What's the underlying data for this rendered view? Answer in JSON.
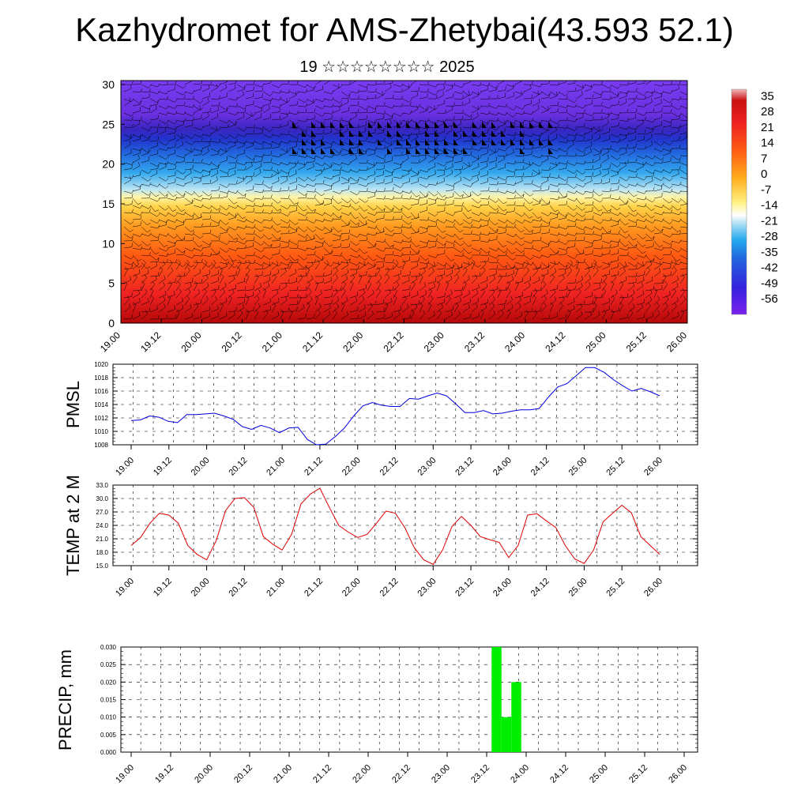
{
  "header": {
    "title": "Kazhydromet for AMS-Zhetybai(43.593 52.1)",
    "subtitle": "19 ☆☆☆☆☆☆☆☆ 2025"
  },
  "colors": {
    "pmsl_line": "#0000dd",
    "temp_line": "#dd0000",
    "precip_bar": "#00ee00",
    "frame": "#000000"
  },
  "chart_data": [
    {
      "type": "heatmap",
      "name": "vertical-cross-section",
      "x_ticks": [
        "19.00",
        "19.12",
        "20.00",
        "20.12",
        "21.00",
        "21.12",
        "22.00",
        "22.12",
        "23.00",
        "23.12",
        "24.00",
        "24.12",
        "25.00",
        "25.12",
        "26.00"
      ],
      "y_ticks": [
        0,
        5,
        10,
        15,
        20,
        25,
        30
      ],
      "ylim": [
        0,
        30.5
      ],
      "colorbar_labels": [
        "35",
        "28",
        "21",
        "14",
        "7",
        "0",
        "-7",
        "-14",
        "-21",
        "-28",
        "-35",
        "-42",
        "-49",
        "-56"
      ],
      "colorbar_range": [
        -63,
        38
      ],
      "overlay": "wind barbs"
    },
    {
      "type": "line",
      "name": "pmsl",
      "ylabel": "PMSL",
      "x_ticks": [
        "19.00",
        "19.12",
        "20.00",
        "20.12",
        "21.00",
        "21.12",
        "22.00",
        "22.12",
        "23.00",
        "23.12",
        "24.00",
        "24.12",
        "25.00",
        "25.12",
        "26.00"
      ],
      "y_ticks": [
        "1008",
        "1010",
        "1012",
        "1014",
        "1016",
        "1018",
        "1020"
      ],
      "ylim": [
        1008,
        1020
      ],
      "values": [
        1011.6,
        1011.7,
        1012.3,
        1012.1,
        1011.5,
        1011.3,
        1012.5,
        1012.5,
        1012.6,
        1012.7,
        1012.3,
        1011.8,
        1010.7,
        1010.3,
        1010.9,
        1010.5,
        1009.8,
        1010.5,
        1010.6,
        1008.8,
        1008.0,
        1008.1,
        1009.2,
        1010.5,
        1012.3,
        1013.8,
        1014.3,
        1013.9,
        1013.7,
        1013.7,
        1014.9,
        1014.8,
        1015.3,
        1015.7,
        1015.3,
        1014.1,
        1012.8,
        1012.8,
        1013.1,
        1012.6,
        1012.7,
        1013.0,
        1013.2,
        1013.2,
        1013.4,
        1015.1,
        1016.6,
        1017.1,
        1018.3,
        1019.5,
        1019.5,
        1018.8,
        1017.7,
        1016.8,
        1016.0,
        1016.4,
        1015.9,
        1015.3
      ]
    },
    {
      "type": "line",
      "name": "temp-2m",
      "ylabel": "TEMP at 2 M",
      "x_ticks": [
        "19.00",
        "19.12",
        "20.00",
        "20.12",
        "21.00",
        "21.12",
        "22.00",
        "22.12",
        "23.00",
        "23.12",
        "24.00",
        "24.12",
        "25.00",
        "25.12",
        "26.00"
      ],
      "y_ticks": [
        "15.0",
        "18.0",
        "21.0",
        "24.0",
        "27.0",
        "30.0",
        "33.0"
      ],
      "ylim": [
        15,
        33
      ],
      "values": [
        19.5,
        21.3,
        24.5,
        26.7,
        26.3,
        24.5,
        19.5,
        17.5,
        16.3,
        20.5,
        27.3,
        30.0,
        30.2,
        28.0,
        21.5,
        19.8,
        18.5,
        22.0,
        28.8,
        31.0,
        32.3,
        28.0,
        24.0,
        22.5,
        21.3,
        22.0,
        24.5,
        27.2,
        26.7,
        23.5,
        19.0,
        16.3,
        15.3,
        18.5,
        23.8,
        26.0,
        24.0,
        21.5,
        20.8,
        20.2,
        16.8,
        19.5,
        26.3,
        26.6,
        25.0,
        23.5,
        19.5,
        16.5,
        15.5,
        18.5,
        24.8,
        26.7,
        28.5,
        26.8,
        21.5,
        19.5,
        17.5
      ]
    },
    {
      "type": "bar",
      "name": "precipitation",
      "ylabel": "PRECIP, mm",
      "x_ticks": [
        "19.00",
        "19.12",
        "20.00",
        "20.12",
        "21.00",
        "21.12",
        "22.00",
        "22.12",
        "23.00",
        "23.12",
        "24.00",
        "24.12",
        "25.00",
        "25.12",
        "26.00"
      ],
      "y_ticks": [
        "0.000",
        "0.005",
        "0.010",
        "0.015",
        "0.020",
        "0.025",
        "0.030"
      ],
      "ylim": [
        0,
        0.03
      ],
      "bars": [
        {
          "time_hours": 111,
          "value": 0.03
        },
        {
          "time_hours": 114,
          "value": 0.01
        },
        {
          "time_hours": 117,
          "value": 0.02
        }
      ]
    }
  ]
}
